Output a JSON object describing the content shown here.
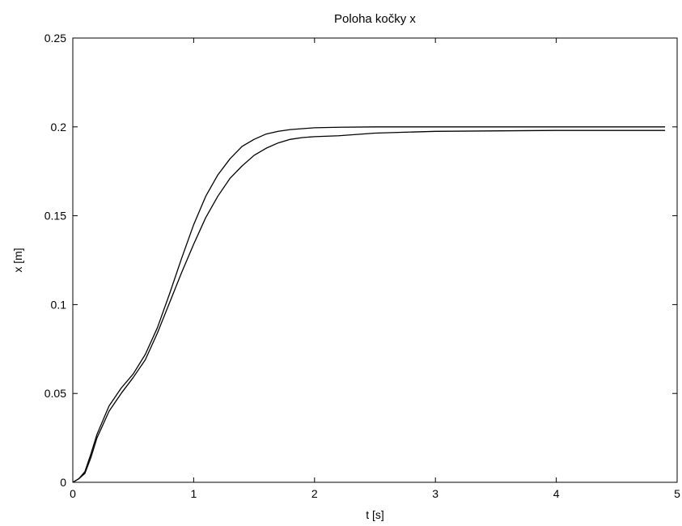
{
  "chart_data": {
    "type": "line",
    "title": "Poloha kočky x",
    "xlabel": "t [s]",
    "ylabel": "x [m]",
    "xlim": [
      0,
      5
    ],
    "ylim": [
      0,
      0.25
    ],
    "x_ticks": [
      "0",
      "1",
      "2",
      "3",
      "4",
      "5"
    ],
    "y_ticks": [
      "0",
      "0.05",
      "0.1",
      "0.15",
      "0.2",
      "0.25"
    ],
    "grid": false,
    "legend": "none",
    "series": [
      {
        "color": "#000000",
        "x": [
          0,
          0.05,
          0.1,
          0.15,
          0.2,
          0.3,
          0.4,
          0.5,
          0.6,
          0.7,
          0.8,
          0.9,
          1.0,
          1.1,
          1.2,
          1.3,
          1.4,
          1.5,
          1.6,
          1.7,
          1.8,
          1.9,
          2.0,
          2.2,
          2.5,
          3.0,
          4.0,
          4.9
        ],
        "y": [
          0,
          0.002,
          0.006,
          0.016,
          0.027,
          0.043,
          0.053,
          0.061,
          0.072,
          0.087,
          0.106,
          0.126,
          0.145,
          0.161,
          0.173,
          0.182,
          0.189,
          0.193,
          0.196,
          0.1975,
          0.1985,
          0.199,
          0.1995,
          0.1998,
          0.2,
          0.2,
          0.2,
          0.2
        ]
      },
      {
        "color": "#000000",
        "x": [
          0,
          0.05,
          0.1,
          0.15,
          0.2,
          0.3,
          0.4,
          0.5,
          0.6,
          0.7,
          0.8,
          0.9,
          1.0,
          1.1,
          1.2,
          1.3,
          1.4,
          1.5,
          1.6,
          1.7,
          1.8,
          1.9,
          2.0,
          2.2,
          2.5,
          3.0,
          4.0,
          4.9
        ],
        "y": [
          0,
          0.002,
          0.005,
          0.014,
          0.025,
          0.04,
          0.05,
          0.059,
          0.069,
          0.084,
          0.101,
          0.118,
          0.134,
          0.149,
          0.161,
          0.171,
          0.178,
          0.184,
          0.188,
          0.191,
          0.193,
          0.194,
          0.1945,
          0.195,
          0.1965,
          0.1975,
          0.198,
          0.198
        ]
      }
    ]
  }
}
